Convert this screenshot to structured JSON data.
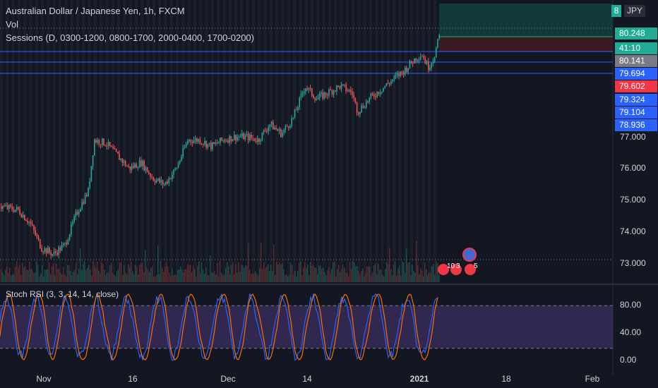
{
  "legend": {
    "symbol_line": "Australian Dollar / Japanese Yen, 1h, FXCM",
    "vol_line": "Vol",
    "sessions_line": "Sessions (D, 0300-1200, 0800-1700, 2000-0400, 1700-0200)"
  },
  "rsi_title": "Stoch RSI (3, 3, 14, 14, close)",
  "currency_button": "JPY",
  "position_box_label": "8",
  "price_tags": [
    {
      "label": "80.248",
      "color": "#22ab94"
    },
    {
      "label": "41:10",
      "color": "#22ab94"
    },
    {
      "label": "80.141",
      "color": "#787b86"
    },
    {
      "label": "79.694",
      "color": "#2962ff"
    },
    {
      "label": "79.602",
      "color": "#f23645"
    },
    {
      "label": "79.324",
      "color": "#2962ff"
    },
    {
      "label": "79.104",
      "color": "#2962ff"
    },
    {
      "label": "78.936",
      "color": "#2962ff"
    }
  ],
  "price_axis_ticks": [
    "77.000",
    "76.000",
    "75.000",
    "74.000",
    "73.000"
  ],
  "rsi_axis_ticks": [
    "80.00",
    "40.00",
    "0.00"
  ],
  "time_axis_ticks": [
    {
      "label": "Nov",
      "bold": false
    },
    {
      "label": "16",
      "bold": false
    },
    {
      "label": "Dec",
      "bold": false
    },
    {
      "label": "14",
      "bold": false
    },
    {
      "label": "2021",
      "bold": true
    },
    {
      "label": "18",
      "bold": false
    },
    {
      "label": "Feb",
      "bold": false
    }
  ],
  "events": [
    {
      "label": "10"
    },
    {
      "label": "3"
    },
    {
      "label": "5"
    }
  ],
  "colors": {
    "background": "#131722",
    "up": "#26a69a",
    "down": "#ef5350",
    "hline": "#2962ff",
    "rsi_k": "#2962ff",
    "rsi_d": "#ff6d00",
    "rsi_band": "#7e57c2"
  },
  "chart_data": {
    "type": "candlestick",
    "symbol": "AUDJPY",
    "interval": "1h",
    "price_range": [
      72.7,
      80.6
    ],
    "horizontal_levels": [
      79.694,
      79.324,
      79.104,
      78.936
    ],
    "close_path": [
      [
        0,
        74.8
      ],
      [
        3,
        74.7
      ],
      [
        5,
        74.3
      ],
      [
        7,
        73.5
      ],
      [
        9,
        73.3
      ],
      [
        11,
        73.6
      ],
      [
        13,
        74.6
      ],
      [
        15,
        75.3
      ],
      [
        16,
        76.9
      ],
      [
        18,
        76.8
      ],
      [
        20,
        76.4
      ],
      [
        22,
        76.0
      ],
      [
        24,
        76.2
      ],
      [
        26,
        75.7
      ],
      [
        28,
        75.5
      ],
      [
        30,
        76.0
      ],
      [
        32,
        76.9
      ],
      [
        34,
        76.9
      ],
      [
        36,
        76.7
      ],
      [
        38,
        76.9
      ],
      [
        40,
        77.0
      ],
      [
        42,
        77.0
      ],
      [
        44,
        76.9
      ],
      [
        46,
        77.4
      ],
      [
        48,
        77.1
      ],
      [
        50,
        77.6
      ],
      [
        52,
        78.6
      ],
      [
        54,
        78.2
      ],
      [
        56,
        78.4
      ],
      [
        58,
        78.6
      ],
      [
        60,
        78.4
      ],
      [
        61,
        77.8
      ],
      [
        63,
        78.2
      ],
      [
        65,
        78.5
      ],
      [
        67,
        78.8
      ],
      [
        69,
        79.1
      ],
      [
        71,
        79.5
      ],
      [
        72,
        79.6
      ],
      [
        73,
        79.2
      ],
      [
        74,
        79.5
      ],
      [
        75,
        80.2
      ]
    ],
    "rsi_levels": [
      80,
      20
    ],
    "rsi_range": [
      0,
      100
    ]
  }
}
